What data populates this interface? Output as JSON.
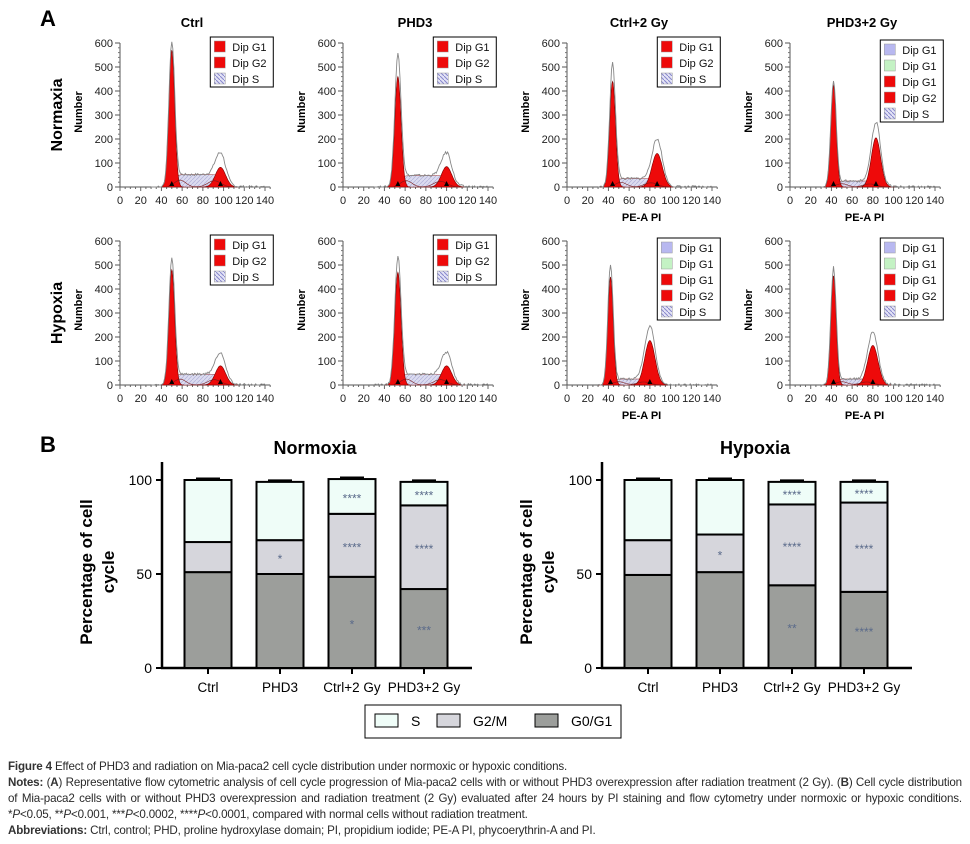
{
  "panel_labels": {
    "a": "A",
    "b": "B"
  },
  "panel_a": {
    "column_titles": [
      "Ctrl",
      "PHD3",
      "Ctrl+2 Gy",
      "PHD3+2 Gy"
    ],
    "row_labels": [
      "Normaxia",
      "Hypoxia"
    ],
    "y_label": "Number",
    "x_label": "PE-A PI",
    "y_ticks": [
      "0",
      "100",
      "200",
      "300",
      "400",
      "500",
      "600"
    ],
    "x_ticks": [
      "0",
      "20",
      "40",
      "60",
      "80",
      "100",
      "120",
      "140"
    ],
    "colors": {
      "g1": "#ee0a0a",
      "g2": "#ee0a0a",
      "s": "#d9d9ee",
      "g1_blue": "#b8b8f0",
      "g1_green": "#c4f2c4",
      "envelope": "#888888"
    }
  },
  "chart_data": [
    {
      "type": "histogram",
      "row": "Normaxia",
      "column": "Ctrl",
      "xlim": [
        0,
        140
      ],
      "ylim": [
        0,
        600
      ],
      "g1": {
        "mean": 50,
        "height": 570,
        "sd": 2.8
      },
      "g2": {
        "mean": 97,
        "height": 82,
        "sd": 5
      },
      "s_level": 52,
      "envelope_peak": 600,
      "legend": [
        {
          "label": "Dip G1",
          "color": "g1"
        },
        {
          "label": "Dip G2",
          "color": "g2"
        },
        {
          "label": "Dip S",
          "color": "s"
        }
      ]
    },
    {
      "type": "histogram",
      "row": "Normaxia",
      "column": "PHD3",
      "xlim": [
        0,
        140
      ],
      "ylim": [
        0,
        600
      ],
      "g1": {
        "mean": 53,
        "height": 460,
        "sd": 3
      },
      "g2": {
        "mean": 100,
        "height": 85,
        "sd": 5
      },
      "s_level": 48,
      "envelope_peak": 545,
      "legend": [
        {
          "label": "Dip G1",
          "color": "g1"
        },
        {
          "label": "Dip G2",
          "color": "g2"
        },
        {
          "label": "Dip S",
          "color": "s"
        }
      ]
    },
    {
      "type": "histogram",
      "row": "Normaxia",
      "column": "Ctrl+2 Gy",
      "xlabel": "PE-A PI",
      "xlim": [
        0,
        140
      ],
      "ylim": [
        0,
        600
      ],
      "g1": {
        "mean": 44,
        "height": 440,
        "sd": 2.8
      },
      "g2": {
        "mean": 87,
        "height": 140,
        "sd": 5
      },
      "s_level": 35,
      "envelope_peak": 510,
      "legend": [
        {
          "label": "Dip G1",
          "color": "g1"
        },
        {
          "label": "Dip G2",
          "color": "g2"
        },
        {
          "label": "Dip S",
          "color": "s"
        }
      ]
    },
    {
      "type": "histogram",
      "row": "Normaxia",
      "column": "PHD3+2 Gy",
      "xlabel": "PE-A PI",
      "xlim": [
        0,
        140
      ],
      "ylim": [
        0,
        600
      ],
      "g1": {
        "mean": 42,
        "height": 425,
        "sd": 2.6
      },
      "g2": {
        "mean": 83,
        "height": 205,
        "sd": 4.5
      },
      "s_level": 25,
      "envelope_peak": 440,
      "legend": [
        {
          "label": "Dip G1",
          "color": "g1_blue"
        },
        {
          "label": "Dip G1",
          "color": "g1_green"
        },
        {
          "label": "Dip G1",
          "color": "g1"
        },
        {
          "label": "Dip G2",
          "color": "g2"
        },
        {
          "label": "Dip S",
          "color": "s"
        }
      ]
    },
    {
      "type": "histogram",
      "row": "Hypoxia",
      "column": "Ctrl",
      "xlim": [
        0,
        140
      ],
      "ylim": [
        0,
        600
      ],
      "g1": {
        "mean": 50,
        "height": 480,
        "sd": 2.8
      },
      "g2": {
        "mean": 97,
        "height": 80,
        "sd": 5
      },
      "s_level": 45,
      "envelope_peak": 520,
      "legend": [
        {
          "label": "Dip G1",
          "color": "g1"
        },
        {
          "label": "Dip G2",
          "color": "g2"
        },
        {
          "label": "Dip S",
          "color": "s"
        }
      ]
    },
    {
      "type": "histogram",
      "row": "Hypoxia",
      "column": "PHD3",
      "xlim": [
        0,
        140
      ],
      "ylim": [
        0,
        600
      ],
      "g1": {
        "mean": 53,
        "height": 470,
        "sd": 3
      },
      "g2": {
        "mean": 100,
        "height": 80,
        "sd": 5
      },
      "s_level": 45,
      "envelope_peak": 530,
      "legend": [
        {
          "label": "Dip G1",
          "color": "g1"
        },
        {
          "label": "Dip G2",
          "color": "g2"
        },
        {
          "label": "Dip S",
          "color": "s"
        }
      ]
    },
    {
      "type": "histogram",
      "row": "Hypoxia",
      "column": "Ctrl+2 Gy",
      "xlabel": "PE-A PI",
      "xlim": [
        0,
        140
      ],
      "ylim": [
        0,
        600
      ],
      "g1": {
        "mean": 42,
        "height": 450,
        "sd": 2.6
      },
      "g2": {
        "mean": 80,
        "height": 185,
        "sd": 5
      },
      "s_level": 25,
      "envelope_peak": 495,
      "legend": [
        {
          "label": "Dip G1",
          "color": "g1_blue"
        },
        {
          "label": "Dip G1",
          "color": "g1_green"
        },
        {
          "label": "Dip G1",
          "color": "g1"
        },
        {
          "label": "Dip G2",
          "color": "g2"
        },
        {
          "label": "Dip S",
          "color": "s"
        }
      ]
    },
    {
      "type": "histogram",
      "row": "Hypoxia",
      "column": "PHD3+2 Gy",
      "xlabel": "PE-A PI",
      "xlim": [
        0,
        140
      ],
      "ylim": [
        0,
        600
      ],
      "g1": {
        "mean": 42,
        "height": 455,
        "sd": 2.6
      },
      "g2": {
        "mean": 80,
        "height": 165,
        "sd": 5
      },
      "s_level": 25,
      "envelope_peak": 485,
      "legend": [
        {
          "label": "Dip G1",
          "color": "g1_blue"
        },
        {
          "label": "Dip G1",
          "color": "g1_green"
        },
        {
          "label": "Dip G1",
          "color": "g1"
        },
        {
          "label": "Dip G2",
          "color": "g2"
        },
        {
          "label": "Dip S",
          "color": "s"
        }
      ]
    },
    {
      "type": "bar",
      "stacked": true,
      "title": "Normoxia",
      "ylabel": "Percentage of cell cycle",
      "ylim": [
        0,
        110
      ],
      "yticks": [
        "0",
        "50",
        "100"
      ],
      "categories": [
        "Ctrl",
        "PHD3",
        "Ctrl+2 Gy",
        "PHD3+2 Gy"
      ],
      "series": [
        {
          "name": "G0/G1",
          "color": "#9c9e9b",
          "values": [
            51,
            50,
            48.5,
            42
          ],
          "annotations": [
            "",
            "",
            "*",
            "***"
          ]
        },
        {
          "name": "G2/M",
          "color": "#d6d6dc",
          "values": [
            16,
            18,
            33.5,
            44.5
          ],
          "annotations": [
            "",
            "*",
            "****",
            "****"
          ]
        },
        {
          "name": "S",
          "color": "#effdf8",
          "values": [
            33,
            31,
            18.5,
            12.5
          ],
          "annotations": [
            "",
            "",
            "****",
            "****"
          ]
        }
      ]
    },
    {
      "type": "bar",
      "stacked": true,
      "title": "Hypoxia",
      "ylabel": "Percentage of cell cycle",
      "ylim": [
        0,
        110
      ],
      "yticks": [
        "0",
        "50",
        "100"
      ],
      "categories": [
        "Ctrl",
        "PHD3",
        "Ctrl+2 Gy",
        "PHD3+2 Gy"
      ],
      "series": [
        {
          "name": "G0/G1",
          "color": "#9c9e9b",
          "values": [
            49.5,
            51,
            44,
            40.5
          ],
          "annotations": [
            "",
            "",
            "**",
            "****"
          ]
        },
        {
          "name": "G2/M",
          "color": "#d6d6dc",
          "values": [
            18.5,
            20,
            43,
            47.5
          ],
          "annotations": [
            "",
            "*",
            "****",
            "****"
          ]
        },
        {
          "name": "S",
          "color": "#effdf8",
          "values": [
            32,
            29,
            12,
            11
          ],
          "annotations": [
            "",
            "",
            "****",
            "****"
          ]
        }
      ]
    }
  ],
  "legend_b": [
    {
      "label": "S",
      "color": "#effdf8"
    },
    {
      "label": "G2/M",
      "color": "#d6d6dc"
    },
    {
      "label": "G0/G1",
      "color": "#9c9e9b"
    }
  ],
  "caption": {
    "figure_label": "Figure 4",
    "title": " Effect of PHD3 and radiation on Mia-paca2 cell cycle distribution under normoxic or hypoxic conditions.",
    "notes_label": "Notes:",
    "notes": [
      {
        "t": " ("
      },
      {
        "t": "A",
        "b": true
      },
      {
        "t": ") Representative flow cytometric analysis of cell cycle progression of Mia-paca2 cells with or without PHD3 overexpression after radiation treatment (2 Gy). ("
      },
      {
        "t": "B",
        "b": true
      },
      {
        "t": ") Cell cycle distribution of Mia-paca2 cells with or without PHD3 overexpression and radiation treatment (2 Gy) evaluated after 24 hours by PI staining and flow cytometry under normoxic or hypoxic conditions. *"
      },
      {
        "t": "P",
        "i": true
      },
      {
        "t": "<0.05, **"
      },
      {
        "t": "P",
        "i": true
      },
      {
        "t": "<0.001, ***"
      },
      {
        "t": "P",
        "i": true
      },
      {
        "t": "<0.0002, ****"
      },
      {
        "t": "P",
        "i": true
      },
      {
        "t": "<0.0001, compared with normal cells without radiation treatment."
      }
    ],
    "abbreviations_label": "Abbreviations:",
    "abbreviations": " Ctrl, control; PHD, proline hydroxylase domain; PI, propidium iodide; PE-A PI, phycoerythrin-A and PI."
  }
}
